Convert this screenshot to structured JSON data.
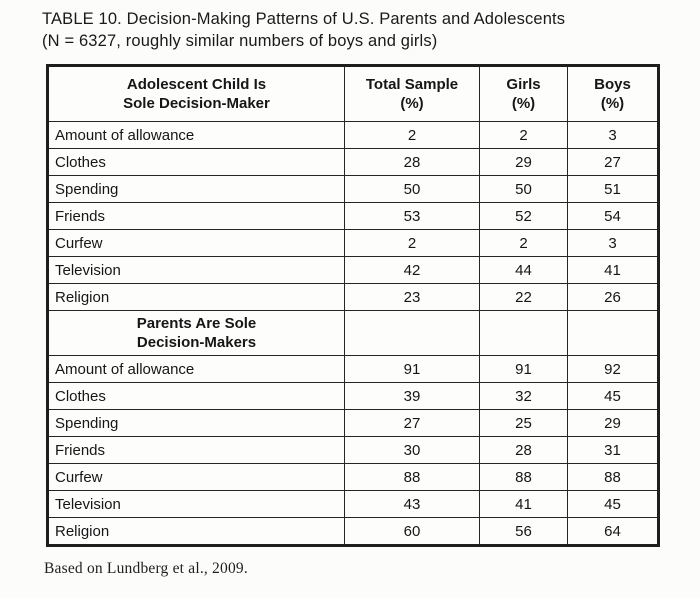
{
  "title": {
    "line1": "TABLE 10. Decision-Making Patterns of U.S. Parents and Adolescents",
    "line2": "(N = 6327, roughly similar numbers of boys and girls)"
  },
  "table": {
    "columns": [
      {
        "label_line1": "Adolescent Child Is",
        "label_line2": "Sole Decision-Maker"
      },
      {
        "label_line1": "Total Sample",
        "label_line2": "(%)"
      },
      {
        "label_line1": "Girls",
        "label_line2": "(%)"
      },
      {
        "label_line1": "Boys",
        "label_line2": "(%)"
      }
    ],
    "sections": [
      {
        "rows": [
          {
            "label": "Amount of allowance",
            "total": "2",
            "girls": "2",
            "boys": "3"
          },
          {
            "label": "Clothes",
            "total": "28",
            "girls": "29",
            "boys": "27"
          },
          {
            "label": "Spending",
            "total": "50",
            "girls": "50",
            "boys": "51"
          },
          {
            "label": "Friends",
            "total": "53",
            "girls": "52",
            "boys": "54"
          },
          {
            "label": "Curfew",
            "total": "2",
            "girls": "2",
            "boys": "3"
          },
          {
            "label": "Television",
            "total": "42",
            "girls": "44",
            "boys": "41"
          },
          {
            "label": "Religion",
            "total": "23",
            "girls": "22",
            "boys": "26"
          }
        ]
      },
      {
        "header_line1": "Parents Are Sole",
        "header_line2": "Decision-Makers",
        "rows": [
          {
            "label": "Amount of allowance",
            "total": "91",
            "girls": "91",
            "boys": "92"
          },
          {
            "label": "Clothes",
            "total": "39",
            "girls": "32",
            "boys": "45"
          },
          {
            "label": "Spending",
            "total": "27",
            "girls": "25",
            "boys": "29"
          },
          {
            "label": "Friends",
            "total": "30",
            "girls": "28",
            "boys": "31"
          },
          {
            "label": "Curfew",
            "total": "88",
            "girls": "88",
            "boys": "88"
          },
          {
            "label": "Television",
            "total": "43",
            "girls": "41",
            "boys": "45"
          },
          {
            "label": "Religion",
            "total": "60",
            "girls": "56",
            "boys": "64"
          }
        ]
      }
    ]
  },
  "footer": "Based on Lundberg et al., 2009.",
  "colors": {
    "page_background": "#fcfcfa",
    "text": "#1c1c1c",
    "border": "#262626"
  }
}
